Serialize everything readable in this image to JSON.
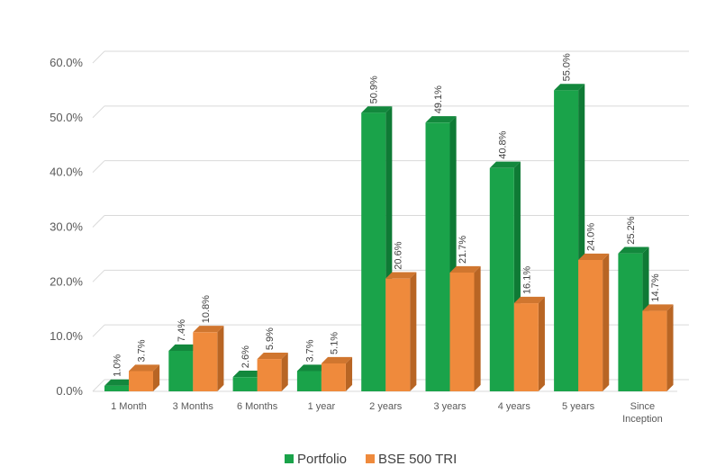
{
  "chart_data": {
    "type": "bar",
    "categories": [
      "1 Month",
      "3 Months",
      "6 Months",
      "1 year",
      "2 years",
      "3 years",
      "4 years",
      "5 years",
      "Since Inception"
    ],
    "category_lines": [
      [
        "1 Month"
      ],
      [
        "3 Months"
      ],
      [
        "6 Months"
      ],
      [
        "1 year"
      ],
      [
        "2 years"
      ],
      [
        "3 years"
      ],
      [
        "4 years"
      ],
      [
        "5 years"
      ],
      [
        "Since",
        "Inception"
      ]
    ],
    "series": [
      {
        "name": "Portfolio",
        "color": "#1aa34a",
        "side_color": "#0f7a35",
        "top_color": "#13883d",
        "values": [
          1.0,
          7.4,
          2.6,
          3.7,
          50.9,
          49.1,
          40.8,
          55.0,
          25.2
        ],
        "labels": [
          "1.0%",
          "7.4%",
          "2.6%",
          "3.7%",
          "50.9%",
          "49.1%",
          "40.8%",
          "55.0%",
          "25.2%"
        ]
      },
      {
        "name": "BSE 500 TRI",
        "color": "#ef8a3c",
        "side_color": "#b86524",
        "top_color": "#d0762f",
        "values": [
          3.7,
          10.8,
          5.9,
          5.1,
          20.6,
          21.7,
          16.1,
          24.0,
          14.7
        ],
        "labels": [
          "3.7%",
          "10.8%",
          "5.9%",
          "5.1%",
          "20.6%",
          "21.7%",
          "16.1%",
          "24.0%",
          "14.7%"
        ]
      }
    ],
    "ylim": [
      0,
      60
    ],
    "y_ticks": [
      0,
      10,
      20,
      30,
      40,
      50,
      60
    ],
    "y_tick_labels": [
      "0.0%",
      "10.0%",
      "20.0%",
      "30.0%",
      "40.0%",
      "50.0%",
      "60.0%"
    ],
    "grid": true,
    "legend_position": "bottom",
    "style": "3d-clustered-column"
  }
}
